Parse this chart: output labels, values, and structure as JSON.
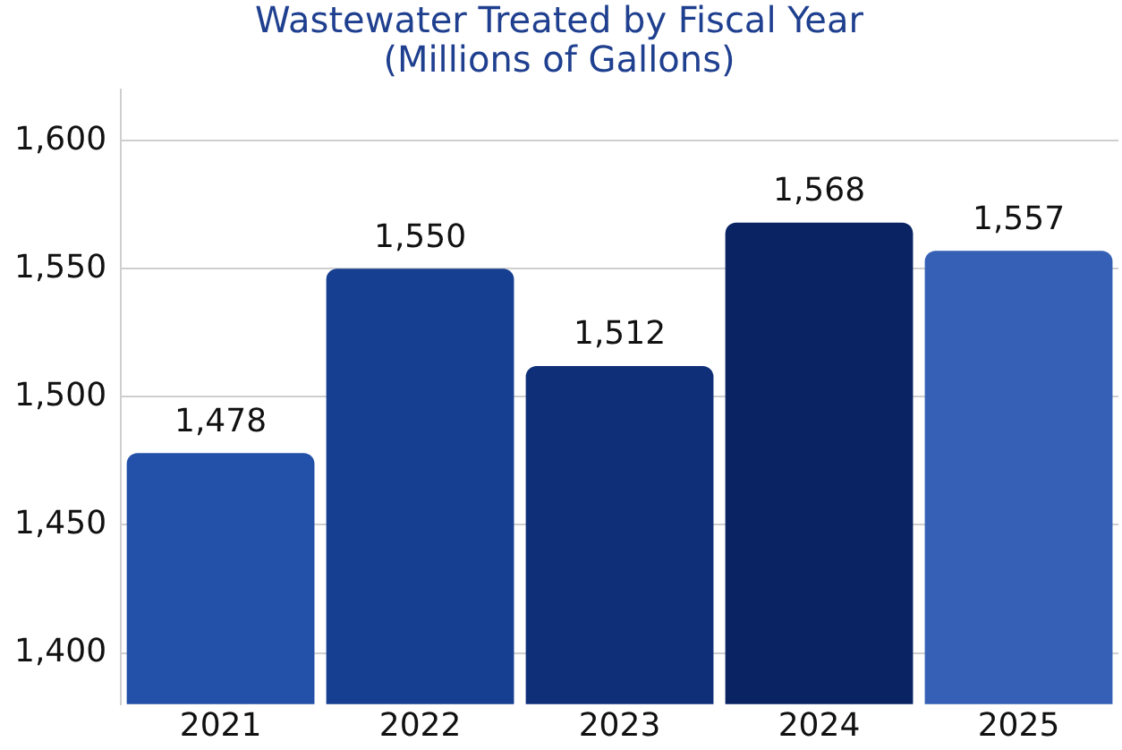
{
  "chart_data": {
    "type": "bar",
    "title": [
      "Wastewater Treated by Fiscal Year",
      "(Millions of Gallons)"
    ],
    "categories": [
      "2021",
      "2022",
      "2023",
      "2024",
      "2025"
    ],
    "values": [
      1478,
      1550,
      1512,
      1568,
      1557
    ],
    "colors": [
      "#2350a8",
      "#163f91",
      "#0f2f78",
      "#0a2463",
      "#3560b5"
    ],
    "ylim": [
      1380,
      1620
    ],
    "yticks": [
      {
        "value": 1400,
        "label": "1,400"
      },
      {
        "value": 1450,
        "label": "1,450"
      },
      {
        "value": 1500,
        "label": "1,500"
      },
      {
        "value": 1550,
        "label": "1,550"
      },
      {
        "value": 1600,
        "label": "1,600"
      }
    ],
    "value_labels": [
      "1,478",
      "1,550",
      "1,512",
      "1,568",
      "1,557"
    ],
    "grid": "y",
    "legend": false
  }
}
